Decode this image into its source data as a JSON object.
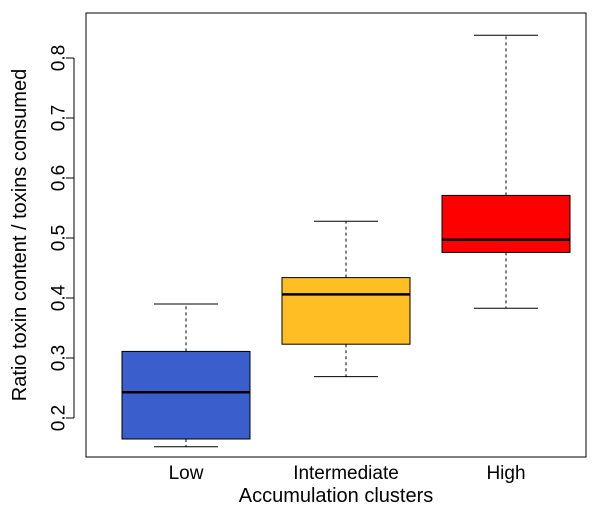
{
  "chart_data": {
    "type": "box",
    "xlabel": "Accumulation clusters",
    "ylabel": "Ratio toxin content / toxins consumed",
    "ylim": [
      0.135,
      0.875
    ],
    "yticks": [
      0.2,
      0.3,
      0.4,
      0.5,
      0.6,
      0.7,
      0.8
    ],
    "ytick_labels": [
      "0.2",
      "0.3",
      "0.4",
      "0.5",
      "0.6",
      "0.7",
      "0.8"
    ],
    "grid": false,
    "legend": "none",
    "categories": [
      "Low",
      "Intermediate",
      "High"
    ],
    "boxes": [
      {
        "category": "Low",
        "min": 0.152,
        "q1": 0.165,
        "median": 0.243,
        "q3": 0.311,
        "max": 0.39,
        "color": "#3A5FCD"
      },
      {
        "category": "Intermediate",
        "min": 0.269,
        "q1": 0.323,
        "median": 0.406,
        "q3": 0.434,
        "max": 0.528,
        "color": "#FFBE24"
      },
      {
        "category": "High",
        "min": 0.383,
        "q1": 0.476,
        "median": 0.497,
        "q3": 0.571,
        "max": 0.838,
        "color": "#FF0000"
      }
    ]
  }
}
